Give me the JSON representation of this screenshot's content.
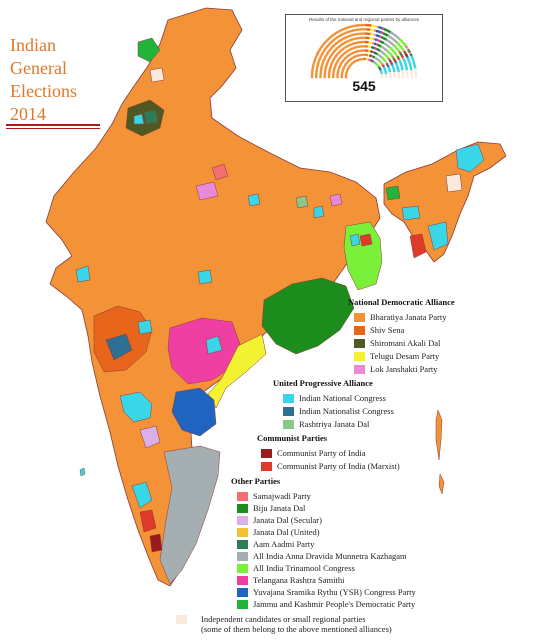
{
  "title_lines": [
    "Indian",
    "General",
    "Elections",
    "2014"
  ],
  "inset": {
    "caption": "Results of the national and regional parties by alliances",
    "total_seats": "545"
  },
  "colors": {
    "bjp": "#f39237",
    "shiv_sena": "#e8651c",
    "sad": "#4f5a22",
    "tdp": "#f2f233",
    "ljp": "#e98ad8",
    "inc": "#38d6e6",
    "ncp": "#2f6f93",
    "rjd": "#88c989",
    "cpi": "#9a1b1b",
    "cpim": "#dd3a2a",
    "sp": "#f36f6f",
    "bjd": "#1c8c1c",
    "jds": "#d9b1e8",
    "jdu": "#f4c135",
    "aap": "#2e7b58",
    "aiadmk": "#a5aeb0",
    "aitc": "#7bf03a",
    "trs": "#f03fa3",
    "ysrcp": "#1f65bf",
    "jkpdp": "#22b33a",
    "independent": "#fbeadb",
    "boundary": "#8a3a3a",
    "title": "#e0782a"
  },
  "legend": {
    "nda": {
      "heading": "National Democratic Alliance",
      "items": [
        "Bharatiya Janata Party",
        "Shiv Sena",
        "Shiromani Akali Dal",
        "Telugu Desam Party",
        "Lok Janshakti Party"
      ]
    },
    "upa": {
      "heading": "United Progressive Alliance",
      "items": [
        "Indian National Congress",
        "Indian Nationalist Congress",
        "Rashtriya Janata Dal"
      ]
    },
    "communist": {
      "heading": "Communist Parties",
      "items": [
        "Communist Party of India",
        "Communist Party of India (Marxist)"
      ]
    },
    "other": {
      "heading": "Other Parties",
      "items": [
        "Samajwadi Party",
        "Biju Janata Dal",
        "Janata Dal (Secular)",
        "Janata Dal (United)",
        "Aam Aadmi Party",
        "All India Anna Dravida Munnetra Kazhagam",
        "All India Trinamool Congress",
        "Telangana Rashtra Samithi",
        "Yuvajana Sramika Rythu (YSR) Congress Party",
        "Jammu and Kashmir People's Democratic Party"
      ]
    },
    "independent": {
      "line1": "Independent candidates or small regional parties",
      "line2": "(some of them belong to the above mentioned alliances)"
    }
  }
}
